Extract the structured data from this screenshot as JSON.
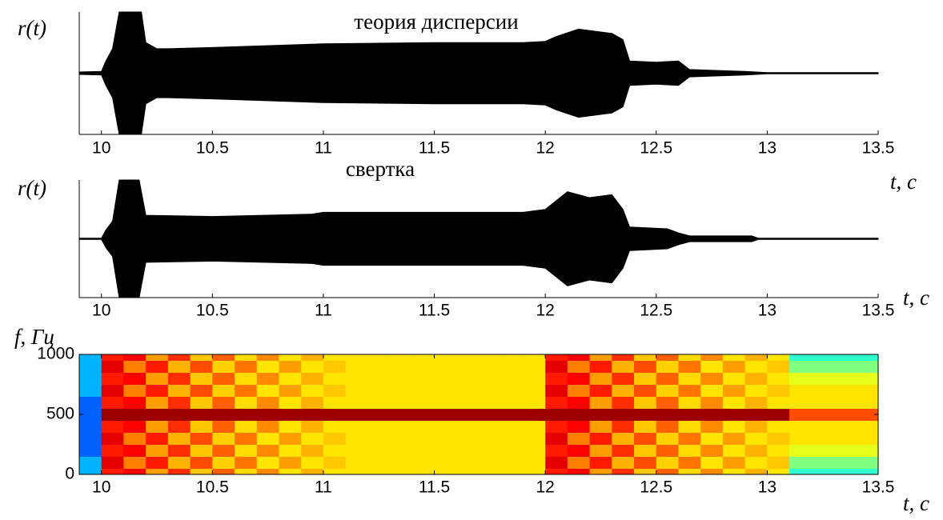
{
  "chart_data": [
    {
      "type": "area",
      "mirrored": true,
      "title": "теория дисперсии",
      "ylabel": "r(t)",
      "xlabel": "t, с",
      "color": "#000000",
      "x": [
        9.9,
        10.0,
        10.02,
        10.05,
        10.08,
        10.18,
        10.2,
        10.25,
        10.3,
        10.5,
        11.0,
        11.5,
        11.9,
        12.0,
        12.05,
        12.15,
        12.3,
        12.35,
        12.38,
        12.5,
        12.6,
        12.65,
        12.9,
        13.0,
        13.5
      ],
      "values": [
        0.02,
        0.03,
        0.2,
        0.4,
        1.0,
        1.0,
        0.5,
        0.4,
        0.4,
        0.42,
        0.48,
        0.5,
        0.5,
        0.52,
        0.6,
        0.72,
        0.65,
        0.55,
        0.2,
        0.18,
        0.2,
        0.06,
        0.03,
        0.01,
        0.01
      ],
      "xlim": [
        9.9,
        13.5
      ],
      "xticks": [
        10,
        10.5,
        11,
        11.5,
        12,
        12.5,
        13,
        13.5
      ],
      "ylim": [
        -1,
        1
      ]
    },
    {
      "type": "area",
      "mirrored": true,
      "title": "свертка",
      "ylabel": "r(t)",
      "xlabel": "t, с",
      "color": "#000000",
      "x": [
        9.9,
        10.0,
        10.02,
        10.05,
        10.08,
        10.17,
        10.2,
        10.5,
        10.95,
        11.0,
        11.9,
        12.0,
        12.1,
        12.2,
        12.3,
        12.35,
        12.38,
        12.55,
        12.6,
        12.65,
        12.93,
        12.96,
        13.5
      ],
      "values": [
        0.01,
        0.01,
        0.15,
        0.3,
        1.0,
        1.0,
        0.4,
        0.38,
        0.42,
        0.45,
        0.45,
        0.5,
        0.8,
        0.7,
        0.75,
        0.5,
        0.2,
        0.17,
        0.1,
        0.05,
        0.05,
        0.01,
        0.01
      ],
      "xlim": [
        9.9,
        13.5
      ],
      "xticks": [
        10,
        10.5,
        11,
        11.5,
        12,
        12.5,
        13,
        13.5
      ],
      "ylim": [
        -1,
        1
      ]
    },
    {
      "type": "heatmap",
      "colormap": "jet",
      "ylabel": "f, Гц",
      "xlabel": "t, с",
      "x": [
        9.95,
        10.05,
        10.15,
        10.25,
        10.35,
        10.45,
        10.55,
        10.65,
        10.75,
        10.85,
        10.95,
        11.05,
        11.15,
        11.25,
        11.35,
        11.45,
        11.55,
        11.65,
        11.75,
        11.85,
        11.95,
        12.05,
        12.15,
        12.25,
        12.35,
        12.45,
        12.55,
        12.65,
        12.75,
        12.85,
        12.95,
        13.05,
        13.15,
        13.25,
        13.35,
        13.45
      ],
      "y": [
        0,
        100,
        200,
        300,
        400,
        500,
        600,
        700,
        800,
        900,
        1000
      ],
      "values": [
        [
          0.3,
          0.85,
          0.88,
          0.72,
          0.83,
          0.68,
          0.78,
          0.66,
          0.74,
          0.65,
          0.7,
          0.65,
          0.65,
          0.65,
          0.65,
          0.65,
          0.65,
          0.65,
          0.65,
          0.65,
          0.65,
          0.85,
          0.88,
          0.72,
          0.83,
          0.68,
          0.78,
          0.66,
          0.74,
          0.65,
          0.7,
          0.65,
          0.42,
          0.42,
          0.42,
          0.42
        ],
        [
          0.3,
          0.9,
          0.75,
          0.85,
          0.7,
          0.8,
          0.67,
          0.76,
          0.65,
          0.72,
          0.65,
          0.68,
          0.65,
          0.65,
          0.65,
          0.65,
          0.65,
          0.65,
          0.65,
          0.65,
          0.65,
          0.9,
          0.75,
          0.85,
          0.7,
          0.8,
          0.67,
          0.76,
          0.65,
          0.72,
          0.65,
          0.68,
          0.5,
          0.5,
          0.5,
          0.5
        ],
        [
          0.22,
          0.85,
          0.88,
          0.72,
          0.83,
          0.68,
          0.78,
          0.66,
          0.74,
          0.65,
          0.7,
          0.65,
          0.65,
          0.65,
          0.65,
          0.65,
          0.65,
          0.65,
          0.65,
          0.65,
          0.65,
          0.85,
          0.88,
          0.72,
          0.83,
          0.68,
          0.78,
          0.66,
          0.74,
          0.65,
          0.7,
          0.65,
          0.6,
          0.6,
          0.6,
          0.6
        ],
        [
          0.22,
          0.9,
          0.75,
          0.85,
          0.7,
          0.8,
          0.67,
          0.76,
          0.65,
          0.72,
          0.65,
          0.68,
          0.65,
          0.65,
          0.65,
          0.65,
          0.65,
          0.65,
          0.65,
          0.65,
          0.65,
          0.9,
          0.75,
          0.85,
          0.7,
          0.8,
          0.67,
          0.76,
          0.65,
          0.72,
          0.65,
          0.68,
          0.65,
          0.65,
          0.65,
          0.65
        ],
        [
          0.22,
          0.85,
          0.88,
          0.72,
          0.83,
          0.68,
          0.78,
          0.66,
          0.74,
          0.65,
          0.7,
          0.65,
          0.65,
          0.65,
          0.65,
          0.65,
          0.65,
          0.65,
          0.65,
          0.65,
          0.65,
          0.85,
          0.88,
          0.72,
          0.83,
          0.68,
          0.78,
          0.66,
          0.74,
          0.65,
          0.7,
          0.65,
          0.65,
          0.65,
          0.65,
          0.65
        ],
        [
          0.22,
          0.97,
          0.97,
          0.97,
          0.97,
          0.97,
          0.97,
          0.97,
          0.97,
          0.97,
          0.97,
          0.97,
          0.97,
          0.97,
          0.97,
          0.97,
          0.97,
          0.97,
          0.97,
          0.97,
          0.97,
          0.97,
          0.97,
          0.97,
          0.97,
          0.97,
          0.97,
          0.97,
          0.97,
          0.97,
          0.97,
          0.97,
          0.8,
          0.8,
          0.8,
          0.8
        ],
        [
          0.22,
          0.85,
          0.88,
          0.72,
          0.83,
          0.68,
          0.78,
          0.66,
          0.74,
          0.65,
          0.7,
          0.65,
          0.65,
          0.65,
          0.65,
          0.65,
          0.65,
          0.65,
          0.65,
          0.65,
          0.65,
          0.85,
          0.88,
          0.72,
          0.83,
          0.68,
          0.78,
          0.66,
          0.74,
          0.65,
          0.7,
          0.65,
          0.65,
          0.65,
          0.65,
          0.65
        ],
        [
          0.3,
          0.9,
          0.75,
          0.85,
          0.7,
          0.8,
          0.67,
          0.76,
          0.65,
          0.72,
          0.65,
          0.68,
          0.65,
          0.65,
          0.65,
          0.65,
          0.65,
          0.65,
          0.65,
          0.65,
          0.65,
          0.9,
          0.75,
          0.85,
          0.7,
          0.8,
          0.67,
          0.76,
          0.65,
          0.72,
          0.65,
          0.68,
          0.65,
          0.65,
          0.65,
          0.65
        ],
        [
          0.3,
          0.85,
          0.88,
          0.72,
          0.83,
          0.68,
          0.78,
          0.66,
          0.74,
          0.65,
          0.7,
          0.65,
          0.65,
          0.65,
          0.65,
          0.65,
          0.65,
          0.65,
          0.65,
          0.65,
          0.65,
          0.85,
          0.88,
          0.72,
          0.83,
          0.68,
          0.78,
          0.66,
          0.74,
          0.65,
          0.7,
          0.65,
          0.6,
          0.6,
          0.6,
          0.6
        ],
        [
          0.3,
          0.9,
          0.75,
          0.85,
          0.7,
          0.8,
          0.67,
          0.76,
          0.65,
          0.72,
          0.65,
          0.68,
          0.65,
          0.65,
          0.65,
          0.65,
          0.65,
          0.65,
          0.65,
          0.65,
          0.65,
          0.9,
          0.75,
          0.85,
          0.7,
          0.8,
          0.67,
          0.76,
          0.65,
          0.72,
          0.65,
          0.68,
          0.5,
          0.5,
          0.5,
          0.5
        ],
        [
          0.3,
          0.85,
          0.88,
          0.72,
          0.83,
          0.68,
          0.78,
          0.66,
          0.74,
          0.65,
          0.7,
          0.65,
          0.65,
          0.65,
          0.65,
          0.65,
          0.65,
          0.65,
          0.65,
          0.65,
          0.65,
          0.85,
          0.88,
          0.72,
          0.83,
          0.68,
          0.78,
          0.66,
          0.74,
          0.65,
          0.7,
          0.65,
          0.42,
          0.42,
          0.42,
          0.42
        ]
      ],
      "xlim": [
        9.9,
        13.5
      ],
      "xticks": [
        10,
        10.5,
        11,
        11.5,
        12,
        12.5,
        13,
        13.5
      ],
      "ylim": [
        0,
        1000
      ],
      "yticks": [
        0,
        500,
        1000
      ]
    }
  ]
}
